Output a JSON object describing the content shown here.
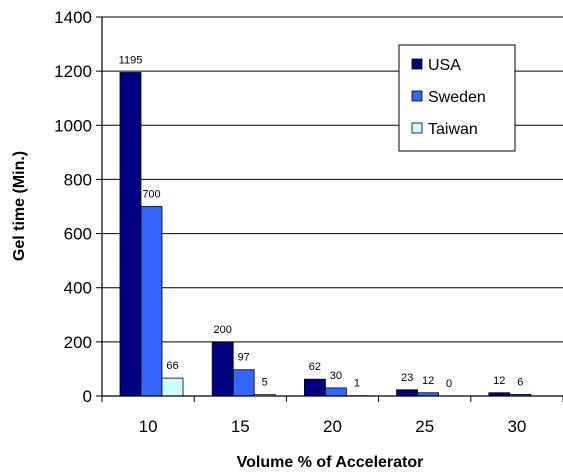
{
  "chart_data": {
    "type": "bar",
    "title": "",
    "xlabel": "Volume % of Accelerator",
    "ylabel": "Gel time (Min.)",
    "categories": [
      "10",
      "15",
      "20",
      "25",
      "30"
    ],
    "ylim": [
      0,
      1400
    ],
    "yticks": [
      "0",
      "200",
      "400",
      "600",
      "800",
      "1000",
      "1200",
      "1400"
    ],
    "grid": true,
    "legend_position": "top-right",
    "series": [
      {
        "name": "USA",
        "color": "#000080",
        "values": [
          1195,
          200,
          62,
          23,
          12
        ],
        "labels": [
          "1195",
          "200",
          "62",
          "23",
          "12"
        ]
      },
      {
        "name": "Sweden",
        "color": "#3366ff",
        "values": [
          700,
          97,
          30,
          12,
          6
        ],
        "labels": [
          "700",
          "97",
          "30",
          "12",
          "6"
        ]
      },
      {
        "name": "Taiwan",
        "color": "#ccffff",
        "values": [
          66,
          5,
          1,
          0,
          null
        ],
        "labels": [
          "66",
          "5",
          "1",
          "0",
          ""
        ]
      }
    ]
  }
}
